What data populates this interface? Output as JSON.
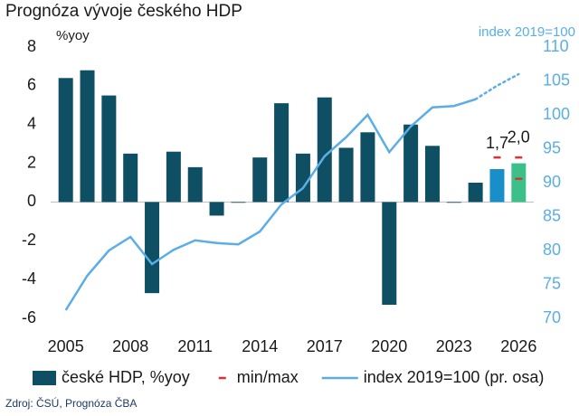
{
  "chart_data": {
    "type": "bar_line",
    "title": "Prognóza vývoje českého HDP",
    "y_label": "%yoy",
    "y2_label": "index 2019=100",
    "source": "Zdroj: ČSÚ, Prognóza ČBA",
    "x": [
      2005,
      2006,
      2007,
      2008,
      2009,
      2010,
      2011,
      2012,
      2013,
      2014,
      2015,
      2016,
      2017,
      2018,
      2019,
      2020,
      2021,
      2022,
      2023,
      2024,
      2025,
      2026
    ],
    "xlim": [
      2004.3,
      2026.7
    ],
    "xticks": [
      2005,
      2008,
      2011,
      2014,
      2017,
      2020,
      2023,
      2026
    ],
    "ylim": [
      -6,
      8
    ],
    "yticks": [
      -6,
      -4,
      -2,
      0,
      2,
      4,
      6,
      8
    ],
    "y2lim": [
      70,
      110
    ],
    "y2ticks": [
      70,
      75,
      80,
      85,
      90,
      95,
      100,
      105,
      110
    ],
    "grid": false,
    "legend": "bottom",
    "series": [
      {
        "name": "české HDP, %yoy",
        "kind": "bar",
        "color": "#0e4f64",
        "colors": [
          "#0e4f64",
          "#0e4f64",
          "#0e4f64",
          "#0e4f64",
          "#0e4f64",
          "#0e4f64",
          "#0e4f64",
          "#0e4f64",
          "#0e4f64",
          "#0e4f64",
          "#0e4f64",
          "#0e4f64",
          "#0e4f64",
          "#0e4f64",
          "#0e4f64",
          "#0e4f64",
          "#0e4f64",
          "#0e4f64",
          "#0e4f64",
          "#0e4f64",
          "#1a8ec9",
          "#3cc08a"
        ],
        "values": [
          6.4,
          6.8,
          5.5,
          2.5,
          -4.7,
          2.6,
          1.8,
          -0.7,
          0.0,
          2.3,
          5.1,
          2.5,
          5.4,
          2.8,
          3.6,
          -5.3,
          4.0,
          2.9,
          0.0,
          1.0,
          1.7,
          2.0
        ],
        "value_labels": [
          null,
          null,
          null,
          null,
          null,
          null,
          null,
          null,
          null,
          null,
          null,
          null,
          null,
          null,
          null,
          null,
          null,
          null,
          null,
          null,
          "1,7",
          "2,0"
        ]
      },
      {
        "name": "min/max",
        "kind": "marker",
        "color": "#e03030",
        "values": [
          null,
          null,
          null,
          null,
          null,
          null,
          null,
          null,
          null,
          null,
          null,
          null,
          null,
          null,
          null,
          null,
          null,
          null,
          null,
          null,
          2.3,
          2.3
        ],
        "min": [
          null,
          null,
          null,
          null,
          null,
          null,
          null,
          null,
          null,
          null,
          null,
          null,
          null,
          null,
          null,
          null,
          null,
          null,
          null,
          null,
          null,
          1.2
        ]
      },
      {
        "name": "index 2019=100 (pr. osa)",
        "kind": "line",
        "axis": "y2",
        "color": "#5aaee5",
        "dotted_from": 2024,
        "values": [
          71.2,
          76.3,
          80.0,
          82.0,
          78.0,
          80.1,
          81.5,
          81.1,
          80.9,
          82.8,
          86.8,
          89.2,
          93.9,
          96.7,
          100.0,
          94.5,
          98.3,
          101.1,
          101.3,
          102.3,
          104.3,
          106.0
        ]
      }
    ]
  }
}
